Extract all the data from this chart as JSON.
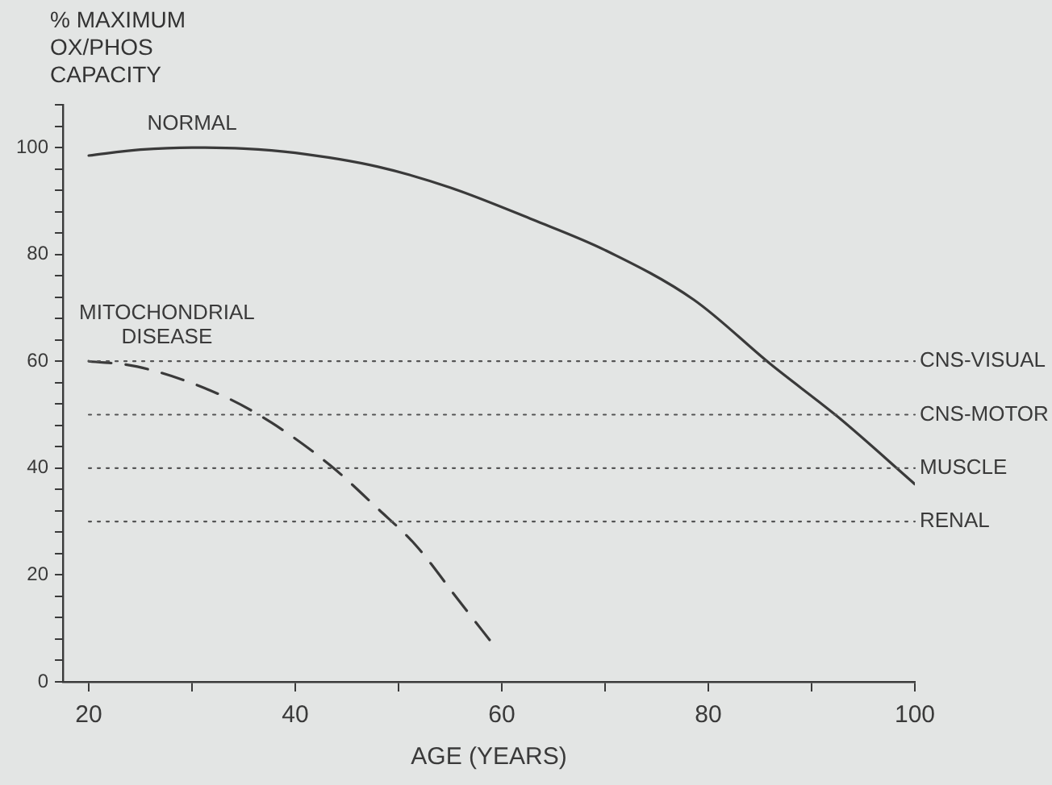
{
  "chart_data": {
    "type": "line",
    "xlabel": "AGE (YEARS)",
    "ylabel": "% MAXIMUM OX/PHOS CAPACITY",
    "xlim": [
      17.5,
      100
    ],
    "xticks": [
      20,
      {
        "value": 30,
        "label": null
      },
      40,
      {
        "value": 50,
        "label": null
      },
      60,
      {
        "value": 70,
        "label": null
      },
      80,
      {
        "value": 90,
        "label": null
      },
      100
    ],
    "ylim": [
      0,
      108
    ],
    "yticks": [
      0,
      {
        "value": 4,
        "label": null
      },
      {
        "value": 8,
        "label": null
      },
      {
        "value": 12,
        "label": null
      },
      {
        "value": 16,
        "label": null
      },
      20,
      {
        "value": 24,
        "label": null
      },
      {
        "value": 28,
        "label": null
      },
      {
        "value": 32,
        "label": null
      },
      {
        "value": 36,
        "label": null
      },
      40,
      {
        "value": 44,
        "label": null
      },
      {
        "value": 48,
        "label": null
      },
      {
        "value": 52,
        "label": null
      },
      {
        "value": 56,
        "label": null
      },
      60,
      {
        "value": 64,
        "label": null
      },
      {
        "value": 68,
        "label": null
      },
      {
        "value": 72,
        "label": null
      },
      {
        "value": 76,
        "label": null
      },
      80,
      {
        "value": 84,
        "label": null
      },
      {
        "value": 88,
        "label": null
      },
      {
        "value": 92,
        "label": null
      },
      {
        "value": 96,
        "label": null
      },
      100,
      {
        "value": 104,
        "label": null
      },
      {
        "value": 108,
        "label": null
      }
    ],
    "grid": false,
    "legend": false,
    "marker": "none",
    "series": [
      {
        "name": "NORMAL",
        "color": "#3a3a3a",
        "line_style": "solid",
        "x": [
          20,
          25,
          30,
          35,
          40,
          48,
          55,
          63,
          70,
          78.6,
          86,
          92.6,
          100
        ],
        "values": [
          98.5,
          99.6,
          100,
          99.8,
          99,
          96.4,
          92.5,
          86.5,
          80.8,
          71.5,
          59.5,
          49.5,
          37
        ]
      },
      {
        "name": "MITOCHONDRIAL DISEASE",
        "color": "#3a3a3a",
        "line_style": "dashed",
        "x": [
          20,
          24.7,
          33,
          37.7,
          43.4,
          48,
          51.7,
          55.8,
          59.2
        ],
        "values": [
          60,
          59,
          53.5,
          48.5,
          40.5,
          32.4,
          25.5,
          15.3,
          6.9
        ]
      }
    ],
    "ref_lines": [
      {
        "axis": "y",
        "value": 60,
        "label": "CNS-VISUAL",
        "line_style": "dotted",
        "color": "#555555"
      },
      {
        "axis": "y",
        "value": 50,
        "label": "CNS-MOTOR",
        "line_style": "dotted",
        "color": "#555555"
      },
      {
        "axis": "y",
        "value": 40,
        "label": "MUSCLE",
        "line_style": "dotted",
        "color": "#555555"
      },
      {
        "axis": "y",
        "value": 30,
        "label": "RENAL",
        "line_style": "dotted",
        "color": "#555555"
      }
    ]
  }
}
